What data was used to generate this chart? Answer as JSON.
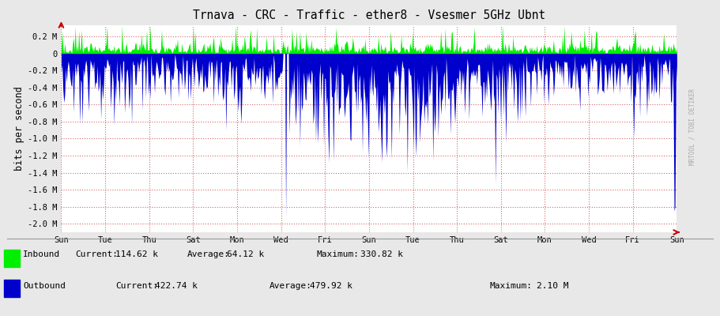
{
  "title": "Trnava - CRC - Traffic - ether8 - Vsesmer 5GHz Ubnt",
  "ylabel": "bits per second",
  "outer_bg": "#e8e8e8",
  "plot_bg": "#ffffff",
  "grid_color": "#cc4444",
  "inbound_color": "#00ee00",
  "outbound_color": "#0000cc",
  "ylim": [
    -2100000,
    330000
  ],
  "yticks": [
    -2000000,
    -1800000,
    -1600000,
    -1400000,
    -1200000,
    -1000000,
    -800000,
    -600000,
    -400000,
    -200000,
    0,
    200000
  ],
  "ytick_labels": [
    "-2.0 M",
    "-1.8 M",
    "-1.6 M",
    "-1.4 M",
    "-1.2 M",
    "-1.0 M",
    "-0.8 M",
    "-0.6 M",
    "-0.4 M",
    "-0.2 M",
    "0",
    "0.2 M"
  ],
  "x_tick_labels": [
    "Sun",
    "Tue",
    "Thu",
    "Sat",
    "Mon",
    "Wed",
    "Fri",
    "Sun",
    "Tue",
    "Thu",
    "Sat",
    "Mon",
    "Wed",
    "Fri",
    "Sun"
  ],
  "watermark": "MRTOOL / TOBI OETIKER",
  "n_points": 700,
  "seed": 77
}
